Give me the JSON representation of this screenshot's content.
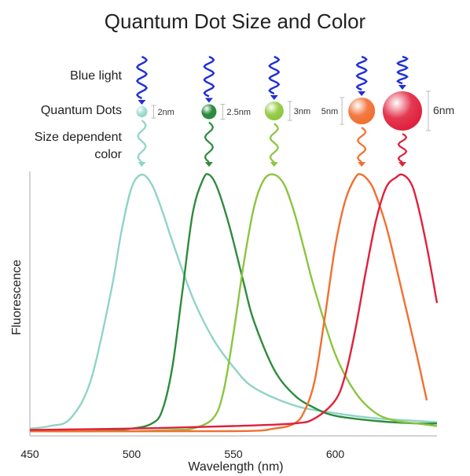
{
  "chart_data": {
    "type": "line",
    "title": "Quantum Dot Size and Color",
    "xlabel": "Wavelength (nm)",
    "ylabel": "Fluorescence",
    "xlim": [
      450,
      650
    ],
    "ylim": [
      0,
      1
    ],
    "x_ticks": [
      450,
      500,
      550,
      600
    ],
    "grid": false,
    "legend": "none",
    "row_labels": {
      "blue_light": "Blue light",
      "quantum_dots": "Quantum Dots",
      "size_dependent_color": "Size dependent\ncolor"
    },
    "series": [
      {
        "size_label": "2nm",
        "color": "#8fd4c6",
        "dot_color": "#a9e0d5",
        "peak": 505,
        "x": [
          450,
          460,
          470,
          480,
          490,
          495,
          500,
          505,
          510,
          515,
          520,
          530,
          540,
          550,
          560,
          580,
          600,
          620,
          640,
          650
        ],
        "y": [
          0.01,
          0.02,
          0.05,
          0.2,
          0.55,
          0.78,
          0.95,
          1.0,
          0.96,
          0.86,
          0.74,
          0.52,
          0.36,
          0.25,
          0.17,
          0.1,
          0.07,
          0.05,
          0.04,
          0.035
        ]
      },
      {
        "size_label": "2.5nm",
        "color": "#2e8b3e",
        "dot_color": "#2e8b3e",
        "peak": 538,
        "x": [
          450,
          480,
          500,
          510,
          515,
          520,
          525,
          530,
          535,
          538,
          542,
          548,
          555,
          560,
          570,
          580,
          590,
          600,
          620,
          640,
          650
        ],
        "y": [
          0.0,
          0.0,
          0.01,
          0.03,
          0.08,
          0.25,
          0.55,
          0.85,
          0.98,
          1.0,
          0.95,
          0.8,
          0.58,
          0.43,
          0.24,
          0.14,
          0.09,
          0.06,
          0.04,
          0.03,
          0.03
        ]
      },
      {
        "size_label": "3nm",
        "color": "#8bc53f",
        "dot_color": "#9ccf4e",
        "peak": 570,
        "x": [
          450,
          500,
          520,
          530,
          540,
          545,
          550,
          555,
          560,
          565,
          570,
          575,
          580,
          585,
          590,
          600,
          610,
          620,
          630,
          640,
          650
        ],
        "y": [
          0.0,
          0.0,
          0.005,
          0.01,
          0.05,
          0.15,
          0.38,
          0.65,
          0.87,
          0.98,
          1.0,
          0.96,
          0.85,
          0.7,
          0.55,
          0.3,
          0.15,
          0.07,
          0.04,
          0.03,
          0.02
        ]
      },
      {
        "size_label": "5nm",
        "color": "#f26f2f",
        "dot_color": "#f37a45",
        "peak": 613,
        "x": [
          450,
          550,
          570,
          580,
          585,
          590,
          595,
          600,
          605,
          610,
          613,
          617,
          620,
          625,
          630,
          635,
          640,
          645
        ],
        "y": [
          0.0,
          0.0,
          0.01,
          0.03,
          0.08,
          0.2,
          0.45,
          0.72,
          0.9,
          0.99,
          1.0,
          0.97,
          0.92,
          0.8,
          0.64,
          0.47,
          0.3,
          0.12
        ]
      },
      {
        "size_label": "6nm",
        "color": "#e0203c",
        "dot_color": "#e43a52",
        "peak": 633,
        "x": [
          450,
          500,
          550,
          580,
          590,
          600,
          605,
          610,
          615,
          620,
          625,
          630,
          633,
          637,
          640,
          645,
          650
        ],
        "y": [
          0.005,
          0.01,
          0.02,
          0.03,
          0.05,
          0.12,
          0.22,
          0.4,
          0.62,
          0.82,
          0.95,
          0.99,
          1.0,
          0.97,
          0.9,
          0.72,
          0.5
        ]
      }
    ]
  }
}
